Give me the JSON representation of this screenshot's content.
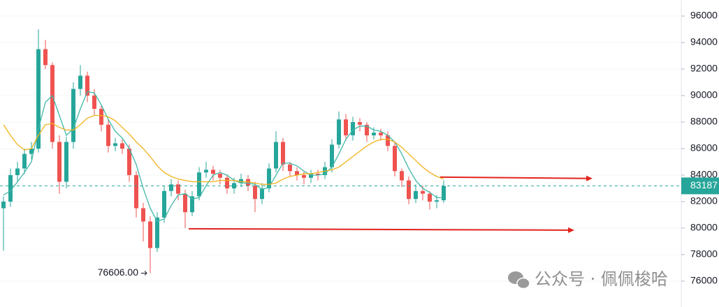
{
  "chart_data": {
    "type": "candlestick",
    "ylim": [
      74050,
      97210
    ],
    "yticks": [
      76000,
      78000,
      80000,
      82000,
      84000,
      86000,
      88000,
      90000,
      92000,
      94000,
      96000
    ],
    "up_color": "#26a69a",
    "down_color": "#ef5350",
    "open": [
      81500,
      82000,
      84000,
      84500,
      85600,
      86000,
      93500,
      92300,
      86500,
      83500,
      86500,
      90500,
      91500,
      90000,
      89000,
      87800,
      86200,
      86400,
      86000,
      84000,
      81500,
      80500,
      78500,
      80800,
      82800,
      83300,
      82600,
      81200,
      82400,
      84200,
      84400,
      84100,
      83800,
      83000,
      83400,
      83700,
      83200,
      82200,
      83000,
      84500,
      86500,
      84800,
      84300,
      84000,
      83800,
      84100,
      84000,
      84600,
      86300,
      88200,
      87000,
      88000,
      87800,
      87000,
      87200,
      87000,
      86200,
      84300,
      83600,
      82200,
      82800,
      82600,
      82000,
      82100
    ],
    "high": [
      82400,
      84500,
      85000,
      86000,
      86500,
      95000,
      94200,
      92500,
      87000,
      86900,
      91000,
      92300,
      91800,
      90500,
      89300,
      88200,
      86800,
      86700,
      86300,
      84300,
      81900,
      80900,
      81200,
      83200,
      83700,
      83600,
      82900,
      82800,
      84600,
      85000,
      84700,
      84400,
      84000,
      83800,
      84100,
      84000,
      83500,
      83400,
      84900,
      87300,
      86800,
      85000,
      84600,
      84300,
      84400,
      84400,
      85000,
      86700,
      88800,
      88600,
      88400,
      88300,
      88000,
      87600,
      87500,
      87300,
      86500,
      84500,
      83900,
      83300,
      83200,
      82800,
      82500,
      83600
    ],
    "low": [
      78300,
      81600,
      83500,
      84100,
      85200,
      85700,
      92000,
      86000,
      82600,
      83000,
      86000,
      90000,
      89500,
      88500,
      87300,
      85700,
      85800,
      85600,
      83500,
      80800,
      79000,
      76606,
      78200,
      80400,
      82400,
      82100,
      80000,
      80900,
      82100,
      83800,
      83600,
      83300,
      82600,
      82600,
      83100,
      82800,
      81200,
      81800,
      82700,
      84200,
      84300,
      83900,
      83600,
      83300,
      83400,
      83600,
      83700,
      84200,
      86000,
      86600,
      86600,
      87300,
      86500,
      86700,
      86600,
      85800,
      83900,
      83100,
      81800,
      81900,
      82100,
      81400,
      81500,
      81900
    ],
    "close": [
      82000,
      84000,
      84500,
      85600,
      86000,
      93500,
      92300,
      86500,
      83500,
      86500,
      90500,
      91500,
      90000,
      89000,
      87800,
      86200,
      86400,
      86000,
      84000,
      81500,
      80500,
      78500,
      80800,
      82800,
      83300,
      82600,
      81200,
      82400,
      84200,
      84400,
      84100,
      83800,
      83000,
      83400,
      83700,
      83200,
      82200,
      83000,
      84500,
      86500,
      84800,
      84300,
      84000,
      83800,
      84100,
      84000,
      84600,
      86300,
      88200,
      87000,
      88000,
      87800,
      87000,
      87200,
      87000,
      86200,
      84300,
      83600,
      82200,
      82800,
      82600,
      82000,
      82100,
      83187
    ],
    "series": [
      {
        "color": "#3fb8a8",
        "values": [
          82500,
          82800,
          83500,
          84200,
          85000,
          87500,
          89500,
          90000,
          88500,
          87000,
          87500,
          89000,
          90300,
          90200,
          89300,
          88200,
          87300,
          86800,
          86000,
          84800,
          83000,
          81500,
          80500,
          80700,
          81700,
          82500,
          82600,
          82200,
          82300,
          83200,
          84000,
          84200,
          84000,
          83600,
          83400,
          83400,
          83300,
          82900,
          83100,
          84000,
          84900,
          84900,
          84700,
          84300,
          84000,
          84000,
          84100,
          84600,
          85600,
          86700,
          87400,
          87700,
          87700,
          87400,
          87300,
          87000,
          86500,
          85600,
          84500,
          83600,
          83000,
          82700,
          82300,
          82300
        ]
      },
      {
        "color": "#f2b21c",
        "values": [
          87800,
          87000,
          86300,
          85900,
          86000,
          87000,
          87800,
          87900,
          87600,
          87400,
          87400,
          87800,
          88300,
          88500,
          88500,
          88400,
          88100,
          87600,
          87100,
          86500,
          86000,
          85400,
          84700,
          84200,
          83900,
          83700,
          83600,
          83500,
          83500,
          83500,
          83500,
          83600,
          83600,
          83600,
          83500,
          83500,
          83400,
          83300,
          83300,
          83400,
          83700,
          83900,
          84000,
          84100,
          84100,
          84200,
          84300,
          84400,
          84600,
          85000,
          85400,
          85800,
          86200,
          86500,
          86700,
          86700,
          86500,
          86100,
          85600,
          85100,
          84600,
          84200,
          83900,
          83700
        ]
      }
    ],
    "last_price": 83187,
    "low_annotation": "76606.00",
    "levels": [
      {
        "value": 83800,
        "color": "#e3231d"
      },
      {
        "value": 79900,
        "color": "#e3231d"
      }
    ],
    "watermark": "公众号 · 佩佩梭哈"
  }
}
